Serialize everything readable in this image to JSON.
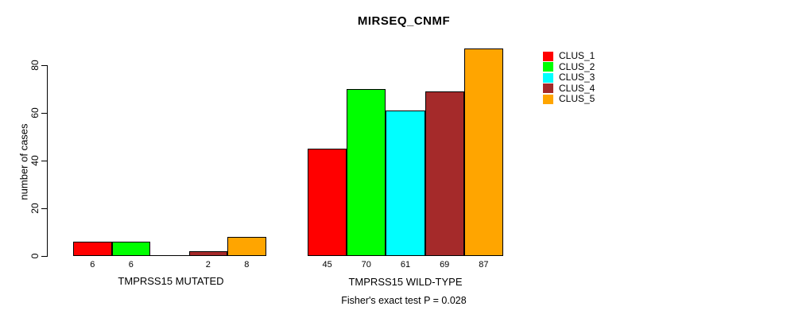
{
  "chart_data": {
    "type": "bar",
    "title": "MIRSEQ_CNMF",
    "ylabel": "number of cases",
    "ylim": [
      0,
      80
    ],
    "yticks": [
      0,
      20,
      40,
      60,
      80
    ],
    "grid": false,
    "legend_position": "topright",
    "categories": [
      "TMPRSS15 MUTATED",
      "TMPRSS15 WILD-TYPE"
    ],
    "series": [
      {
        "name": "CLUS_1",
        "color": "#FF0000",
        "values": [
          6,
          45
        ]
      },
      {
        "name": "CLUS_2",
        "color": "#00FF00",
        "values": [
          6,
          70
        ]
      },
      {
        "name": "CLUS_3",
        "color": "#00FFFF",
        "values": [
          0,
          61
        ]
      },
      {
        "name": "CLUS_4",
        "color": "#A52A2A",
        "values": [
          2,
          69
        ]
      },
      {
        "name": "CLUS_5",
        "color": "#FFA500",
        "values": [
          8,
          87
        ]
      }
    ],
    "groups": [
      {
        "label": "TMPRSS15 MUTATED",
        "values": [
          6,
          6,
          0,
          2,
          8
        ],
        "bar_labels": [
          "6",
          "6",
          "",
          "2",
          "8"
        ]
      },
      {
        "label": "TMPRSS15 WILD-TYPE",
        "values": [
          45,
          70,
          61,
          69,
          87
        ],
        "bar_labels": [
          "45",
          "70",
          "61",
          "69",
          "87"
        ]
      }
    ],
    "subtitle": "Fisher's exact test P = 0.028",
    "axis_color": "#000000",
    "bar_border_color": "#000000",
    "background_color": "#FFFFFF"
  }
}
